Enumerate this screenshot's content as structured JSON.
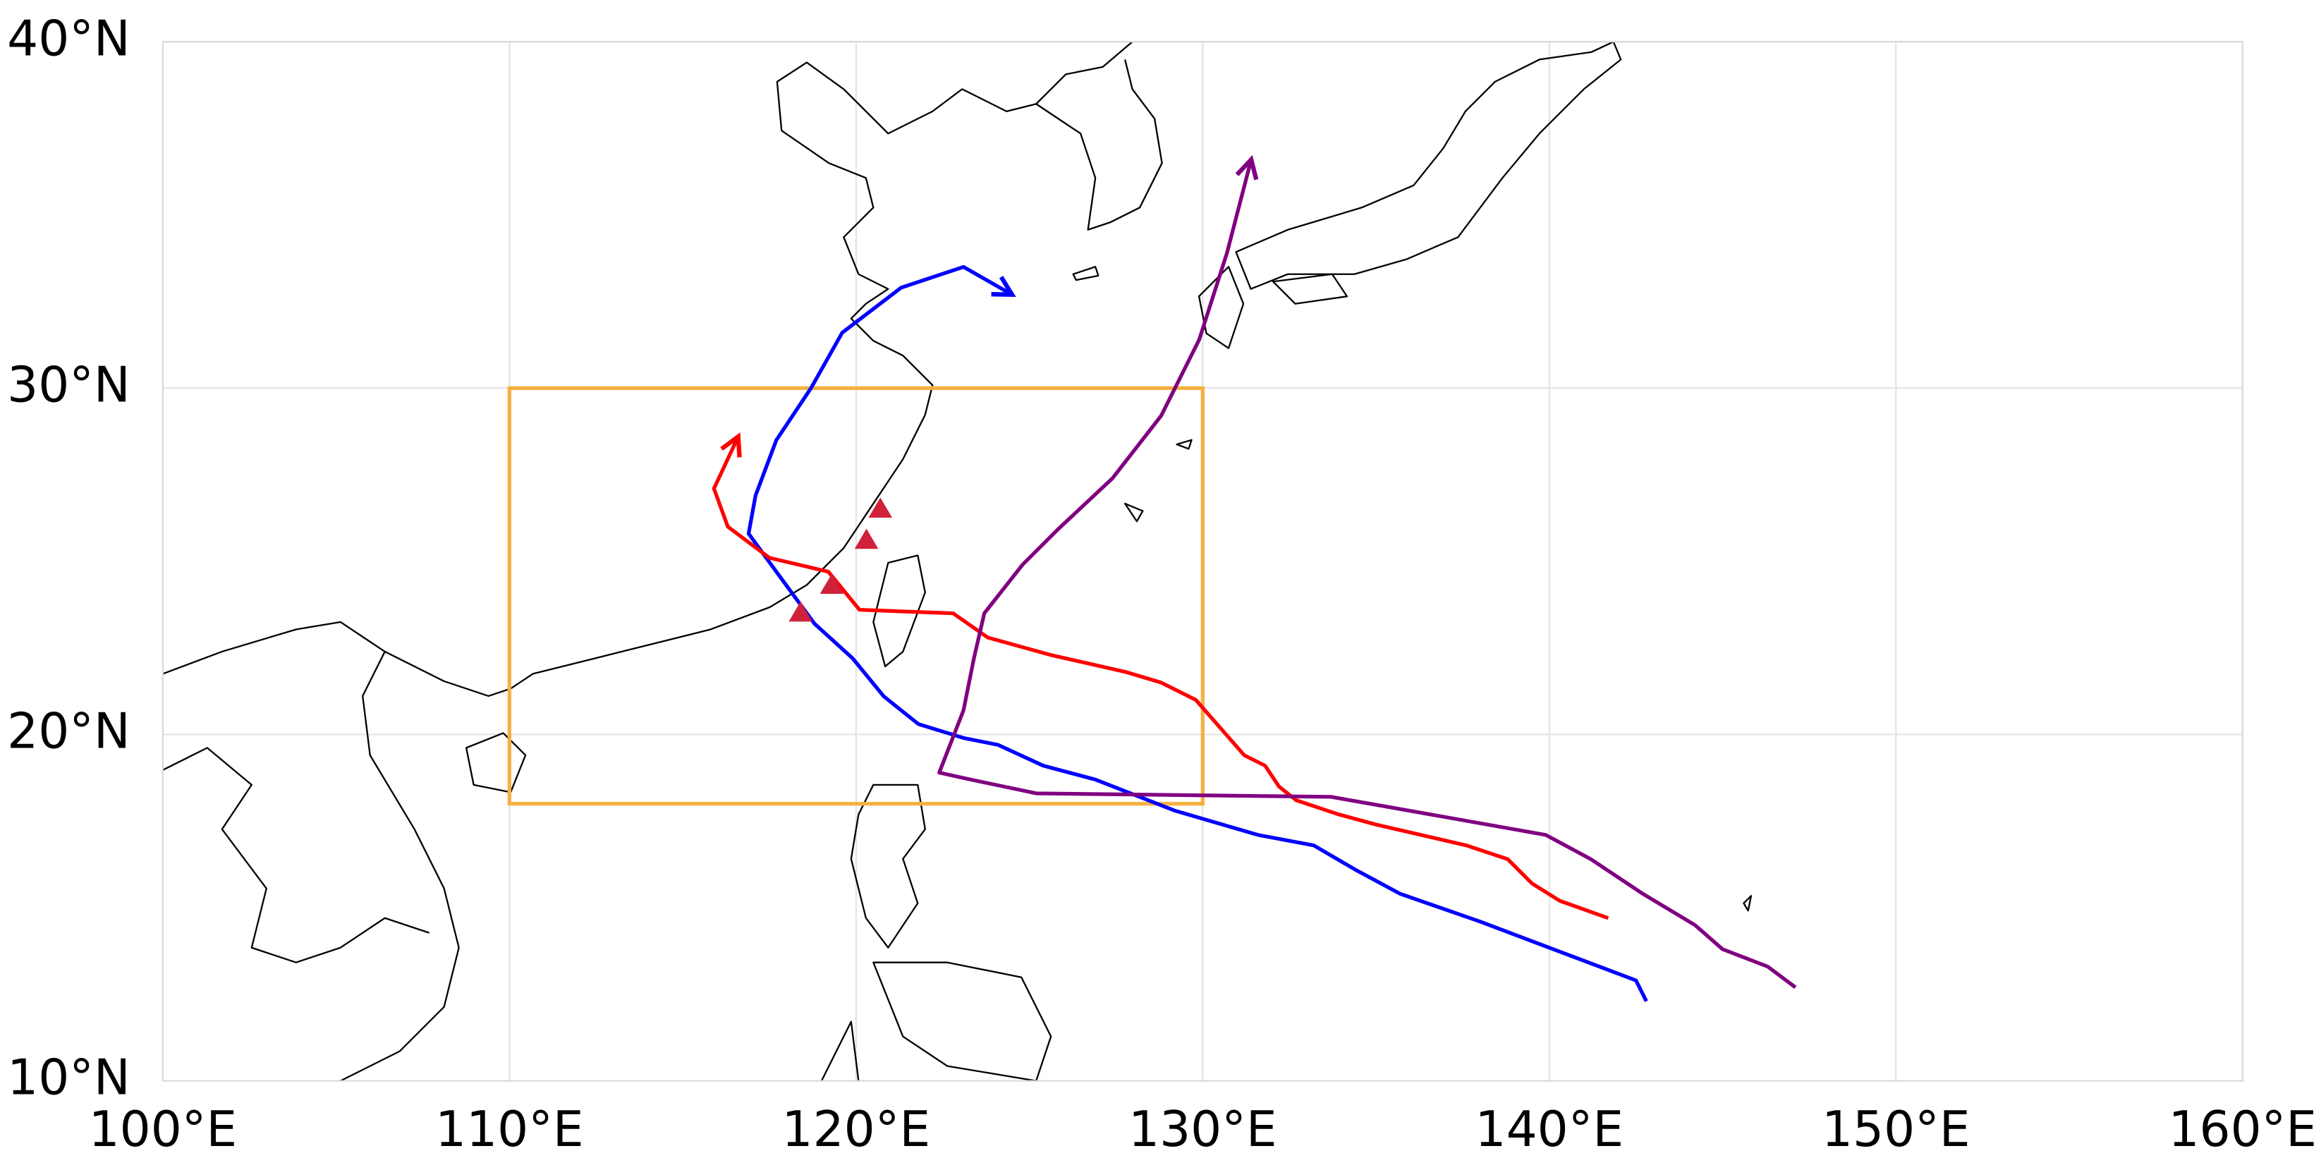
{
  "map": {
    "type": "map",
    "xlim": [
      100,
      160
    ],
    "ylim": [
      10,
      40
    ],
    "xticks": [
      {
        "value": 100,
        "label": "100°E"
      },
      {
        "value": 110,
        "label": "110°E"
      },
      {
        "value": 120,
        "label": "120°E"
      },
      {
        "value": 130,
        "label": "130°E"
      },
      {
        "value": 140,
        "label": "140°E"
      },
      {
        "value": 150,
        "label": "150°E"
      },
      {
        "value": 160,
        "label": "160°E"
      }
    ],
    "yticks": [
      {
        "value": 10,
        "label": "10°N"
      },
      {
        "value": 20,
        "label": "20°N"
      },
      {
        "value": 30,
        "label": "30°N"
      },
      {
        "value": 40,
        "label": "40°N"
      }
    ],
    "grid": true,
    "region": {
      "lon": [
        110,
        130
      ],
      "lat": [
        18,
        30
      ],
      "color": "#f5b041"
    },
    "tracks": [
      {
        "color": "#0000ff",
        "lon": [
          142.8,
          142.5,
          138.0,
          135.7,
          134.4,
          133.2,
          131.6,
          129.2,
          126.9,
          125.4,
          124.1,
          123.1,
          121.8,
          120.8,
          119.9,
          118.8,
          117.7,
          116.9,
          117.1,
          117.7,
          118.7,
          119.6,
          121.3,
          123.1,
          124.5
        ],
        "lat": [
          12.3,
          12.9,
          14.6,
          15.4,
          16.1,
          16.8,
          17.1,
          17.8,
          18.7,
          19.1,
          19.7,
          19.9,
          20.3,
          21.1,
          22.2,
          23.2,
          24.7,
          25.8,
          26.9,
          28.5,
          30.0,
          31.6,
          32.9,
          33.5,
          32.7
        ]
      },
      {
        "color": "#ff0000",
        "lon": [
          141.7,
          140.3,
          139.5,
          138.8,
          137.6,
          135.0,
          133.9,
          132.7,
          132.2,
          131.8,
          131.2,
          129.8,
          128.8,
          127.8,
          125.6,
          123.8,
          122.8,
          120.1,
          119.2,
          117.5,
          116.3,
          115.9,
          116.6
        ],
        "lat": [
          14.7,
          15.2,
          15.7,
          16.4,
          16.8,
          17.4,
          17.7,
          18.1,
          18.5,
          19.1,
          19.4,
          21.0,
          21.5,
          21.8,
          22.3,
          22.8,
          23.5,
          23.6,
          24.7,
          25.1,
          26.0,
          27.1,
          28.6
        ]
      },
      {
        "color": "#800080",
        "lon": [
          147.1,
          146.3,
          145.0,
          144.2,
          142.7,
          141.2,
          139.9,
          135.4,
          133.7,
          125.2,
          123.3,
          122.4,
          123.1,
          123.4,
          123.7,
          124.8,
          125.8,
          127.4,
          128.8,
          129.9,
          130.7,
          131.4
        ],
        "lat": [
          12.7,
          13.3,
          13.8,
          14.5,
          15.4,
          16.4,
          17.1,
          17.9,
          18.2,
          18.3,
          18.7,
          18.9,
          20.7,
          22.2,
          23.5,
          24.9,
          25.9,
          27.4,
          29.2,
          31.4,
          33.9,
          36.6
        ]
      }
    ],
    "stations": {
      "color": "#d0213a",
      "lon": [
        118.4,
        119.3,
        120.3,
        120.7
      ],
      "lat": [
        23.5,
        24.3,
        25.6,
        26.5
      ]
    }
  }
}
